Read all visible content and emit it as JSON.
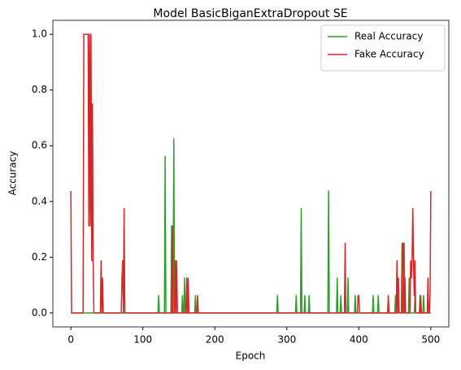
{
  "chart_data": {
    "type": "line",
    "title": "Model BasicBiganExtraDropout SE",
    "xlabel": "Epoch",
    "ylabel": "Accuracy",
    "xlim": [
      -25,
      525
    ],
    "xticks": [
      0,
      100,
      200,
      300,
      400,
      500
    ],
    "ylim": [
      -0.05,
      1.05
    ],
    "yticks": [
      {
        "value": 0,
        "label": "0.0"
      },
      0.2,
      0.4,
      0.6,
      0.8,
      {
        "value": 1,
        "label": "1.0"
      }
    ],
    "legend": "upper right",
    "series": [
      {
        "name": "Real Accuracy",
        "color": "#2ca02c",
        "x": [
          0,
          121,
          122,
          123,
          130,
          131,
          132,
          139,
          140,
          141,
          142,
          143,
          144,
          154,
          155,
          156,
          157,
          158,
          159,
          172,
          173,
          174,
          286,
          287,
          288,
          312,
          313,
          314,
          319,
          320,
          321,
          324,
          325,
          326,
          330,
          331,
          332,
          357,
          358,
          359,
          369,
          370,
          371,
          374,
          375,
          376,
          384,
          385,
          386,
          394,
          395,
          396,
          419,
          420,
          421,
          426,
          427,
          428,
          450,
          451,
          452,
          454,
          455,
          456,
          459,
          460,
          461,
          462,
          463,
          464,
          469,
          470,
          471,
          477,
          478,
          479,
          484,
          485,
          486,
          489,
          490,
          491,
          500
        ],
        "values": [
          0,
          0,
          0.0625,
          0,
          0,
          0.5625,
          0,
          0,
          0.3125,
          0,
          0,
          0.625,
          0,
          0,
          0.0625,
          0,
          0,
          0.125,
          0,
          0,
          0.0625,
          0,
          0,
          0.0625,
          0,
          0,
          0.0625,
          0,
          0,
          0.375,
          0,
          0,
          0.0625,
          0,
          0,
          0.0625,
          0,
          0,
          0.4375,
          0,
          0,
          0.125,
          0,
          0,
          0.0625,
          0,
          0,
          0.125,
          0,
          0,
          0.0625,
          0,
          0,
          0.0625,
          0,
          0,
          0.0625,
          0,
          0,
          0.0625,
          0,
          0,
          0.0625,
          0,
          0,
          0.25,
          0,
          0,
          0.25,
          0,
          0,
          0.125,
          0,
          0,
          0.0625,
          0,
          0,
          0.0625,
          0,
          0,
          0.0625,
          0,
          0
        ]
      },
      {
        "name": "Fake Accuracy",
        "color": "#d62728",
        "x": [
          0,
          1,
          17,
          18,
          24,
          25,
          26,
          27,
          28,
          29,
          30,
          31,
          32,
          41,
          42,
          43,
          44,
          45,
          70,
          71,
          72,
          73,
          74,
          75,
          140,
          141,
          142,
          144,
          145,
          146,
          147,
          148,
          160,
          161,
          162,
          163,
          164,
          175,
          176,
          177,
          380,
          381,
          382,
          398,
          399,
          400,
          401,
          440,
          441,
          442,
          452,
          453,
          454,
          455,
          456,
          460,
          461,
          462,
          463,
          464,
          465,
          471,
          472,
          473,
          474,
          475,
          476,
          477,
          478,
          479,
          485,
          486,
          487,
          495,
          496,
          497,
          498,
          499,
          500
        ],
        "values": [
          0.4375,
          0,
          0,
          1,
          1,
          0.3125,
          1,
          0.3125,
          1,
          0.1875,
          0.75,
          0.1875,
          0,
          0,
          0.1875,
          0,
          0.125,
          0,
          0,
          0.125,
          0.1875,
          0,
          0.375,
          0,
          0,
          0.3125,
          0,
          0,
          0.1875,
          0,
          0.1875,
          0,
          0,
          0.125,
          0,
          0.125,
          0,
          0,
          0.0625,
          0,
          0,
          0.25,
          0,
          0,
          0.0625,
          0.0625,
          0,
          0,
          0.0625,
          0,
          0,
          0.1875,
          0,
          0.125,
          0,
          0,
          0.25,
          0.25,
          0,
          0.125,
          0,
          0,
          0.1875,
          0.125,
          0.1875,
          0.375,
          0.1875,
          0.0625,
          0.1875,
          0,
          0,
          0.0625,
          0,
          0,
          0.125,
          0,
          0,
          0.0625,
          0.4375
        ]
      }
    ]
  }
}
